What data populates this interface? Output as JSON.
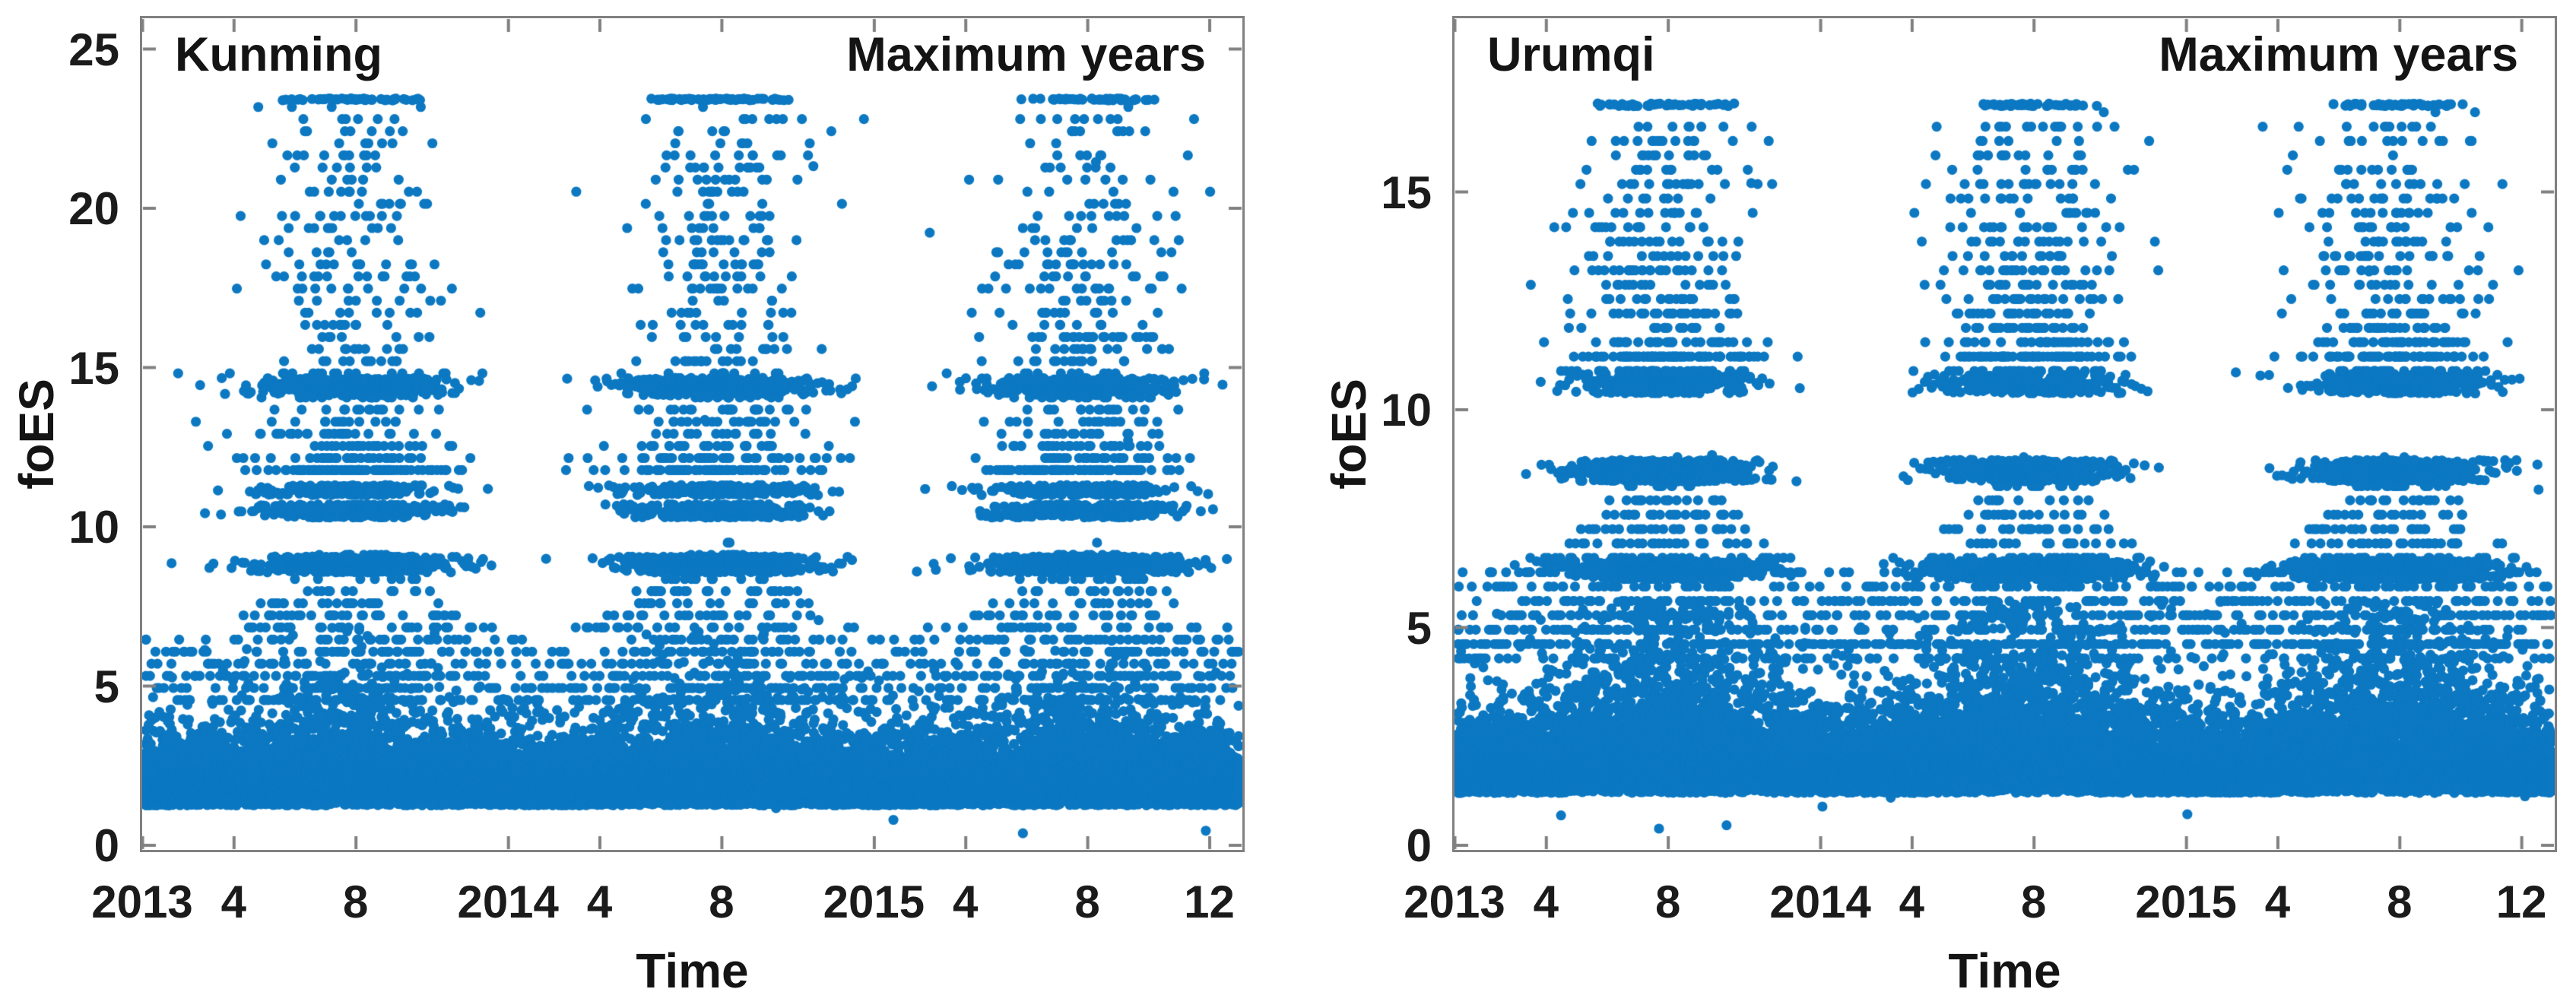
{
  "figure": {
    "background": "#ffffff",
    "marker_color": "#0c78c2",
    "axis_color": "#808080",
    "text_color": "#1b1b1b"
  },
  "chart_data": [
    {
      "type": "scatter",
      "title": "Kunming",
      "annotation": "Maximum years",
      "xlabel": "Time",
      "ylabel": "foES",
      "legend": null,
      "grid": false,
      "ylim": [
        0,
        25.97
      ],
      "y_ticks": [
        0,
        5,
        10,
        15,
        20,
        25
      ],
      "xlim_months": [
        0,
        36.1
      ],
      "x_start_year": 2013,
      "x_ticks": [
        {
          "label": "2013",
          "month": 0
        },
        {
          "label": "4",
          "month": 3
        },
        {
          "label": "8",
          "month": 7
        },
        {
          "label": "2014",
          "month": 12
        },
        {
          "label": "4",
          "month": 15
        },
        {
          "label": "8",
          "month": 19
        },
        {
          "label": "2015",
          "month": 24
        },
        {
          "label": "4",
          "month": 27
        },
        {
          "label": "8",
          "month": 31
        },
        {
          "label": "12",
          "month": 35
        }
      ],
      "point_cloud": {
        "description": "Dense year-round band of foES 1.3-4.5 with summer (May-Sep) bursts up to 23.4; quantized dense rows near 8.8, 10.5, 11.1 and 14.4; sparse tail 11.6-23.1; aligned ceiling row at 23.4",
        "generator": {
          "seed": 20130,
          "baseN": 13,
          "baseLo": 1.25,
          "baseS0": 0.82,
          "baseS1": 0.42,
          "baseCap": 6.9,
          "midP0": 0.5,
          "midP1": 1.7,
          "midLo": 4.55,
          "midPow": 1.5,
          "midR0": 2.1,
          "midR1": 2.9,
          "quant": 0.38,
          "bands": [
            {
              "y": 8.82,
              "h": 0.5,
              "w": 0.4
            },
            {
              "y": 10.5,
              "h": 0.42,
              "w": 0.2
            },
            {
              "y": 11.15,
              "h": 0.32,
              "w": 0.14
            },
            {
              "y": 14.4,
              "h": 0.55,
              "w": 0.26
            }
          ],
          "bandRate": 14,
          "tailRate": 4.2,
          "tailLo": 11.6,
          "tailHi": 23.1,
          "capY": 23.42,
          "capP": 0.5
        }
      }
    },
    {
      "type": "scatter",
      "title": "Urumqi",
      "annotation": "Maximum years",
      "xlabel": "Time",
      "ylabel": "foES",
      "legend": null,
      "grid": false,
      "ylim": [
        0,
        19.0
      ],
      "y_ticks": [
        0,
        5,
        10,
        15
      ],
      "xlim_months": [
        0,
        36.1
      ],
      "x_start_year": 2013,
      "x_ticks": [
        {
          "label": "2013",
          "month": 0
        },
        {
          "label": "4",
          "month": 3
        },
        {
          "label": "8",
          "month": 7
        },
        {
          "label": "2014",
          "month": 12
        },
        {
          "label": "4",
          "month": 15
        },
        {
          "label": "8",
          "month": 19
        },
        {
          "label": "2015",
          "month": 24
        },
        {
          "label": "4",
          "month": 27
        },
        {
          "label": "8",
          "month": 31
        },
        {
          "label": "12",
          "month": 35
        }
      ],
      "point_cloud": {
        "description": "Dense year-round band of foES 1.2-4.2 rising to ~5.5 in summer; dense quantized rows near 6.3, 8.6 and 10.6 during May-Sep; sparse tail 11-16.7; aligned ceiling row at 17.0",
        "generator": {
          "seed": 20231,
          "baseN": 13,
          "baseLo": 1.2,
          "baseS0": 0.7,
          "baseS1": 0.78,
          "baseCap": 5.6,
          "midP0": 0.9,
          "midP1": 1.6,
          "midLo": 4.35,
          "midPow": 1.4,
          "midR0": 1.9,
          "midR1": 2.6,
          "quant": 0.33,
          "bands": [
            {
              "y": 6.32,
              "h": 0.42,
              "w": 0.46
            },
            {
              "y": 8.6,
              "h": 0.5,
              "w": 0.34
            },
            {
              "y": 10.6,
              "h": 0.45,
              "w": 0.2
            }
          ],
          "bandRate": 13,
          "tailRate": 3.6,
          "tailLo": 11.0,
          "tailHi": 16.7,
          "capY": 17.0,
          "capP": 0.45
        }
      }
    }
  ]
}
